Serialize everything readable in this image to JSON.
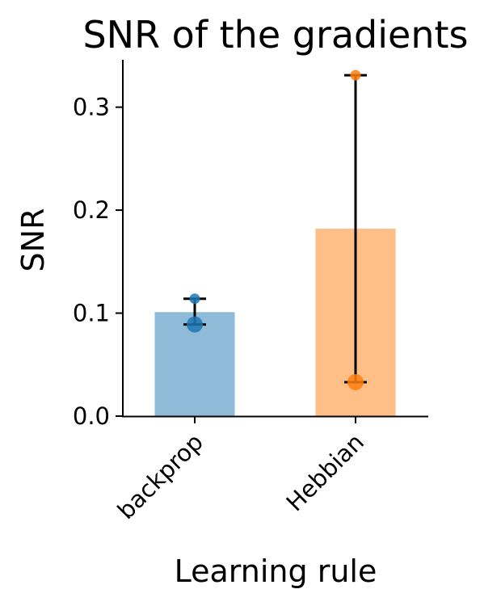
{
  "chart_data": {
    "type": "bar",
    "title": "SNR of the gradients",
    "xlabel": "Learning rule",
    "ylabel": "SNR",
    "categories": [
      "backprop",
      "Hebbian"
    ],
    "values": [
      0.101,
      0.182
    ],
    "ylim": [
      0,
      0.346
    ],
    "yticks": [
      0.0,
      0.1,
      0.2,
      0.3
    ],
    "ytick_labels": [
      "0.0",
      "0.1",
      "0.2",
      "0.3"
    ],
    "points": [
      [
        0.114,
        0.089
      ],
      [
        0.331,
        0.033
      ]
    ],
    "error_bars": [
      [
        0.089,
        0.114
      ],
      [
        0.033,
        0.331
      ]
    ],
    "colors": {
      "bar": [
        "#8fbbd9",
        "#ffbf86"
      ],
      "point": [
        "#1f77b4",
        "#ff7f0e"
      ]
    },
    "grid": false,
    "legend": "none"
  }
}
